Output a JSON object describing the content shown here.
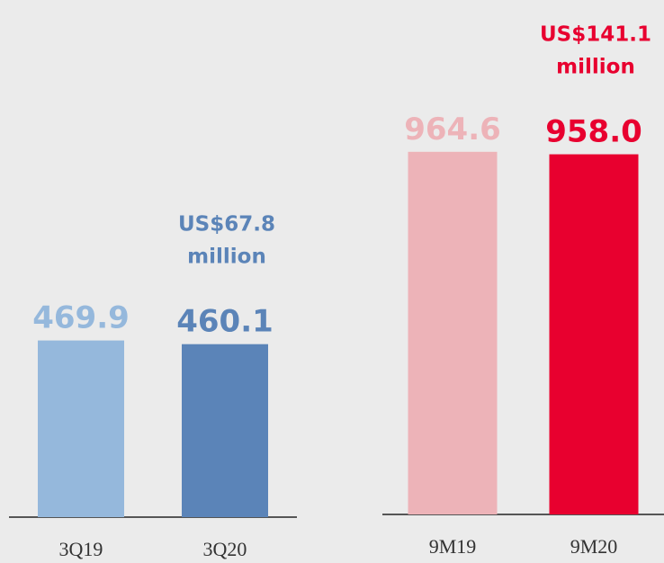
{
  "chart_data": [
    {
      "type": "bar",
      "categories": [
        "3Q19",
        "3Q20"
      ],
      "values": [
        469.9,
        460.1
      ],
      "value_labels": [
        "469.9",
        "460.1"
      ],
      "colors": [
        "#95b8dc",
        "#5b84b8"
      ],
      "annotation": [
        "US$67.8",
        "million"
      ]
    },
    {
      "type": "bar",
      "categories": [
        "9M19",
        "9M20"
      ],
      "values": [
        964.6,
        958.0
      ],
      "value_labels": [
        "964.6",
        "958.0"
      ],
      "colors": [
        "#edb3b8",
        "#e8002f"
      ],
      "annotation": [
        "US$141.1",
        "million"
      ]
    }
  ]
}
